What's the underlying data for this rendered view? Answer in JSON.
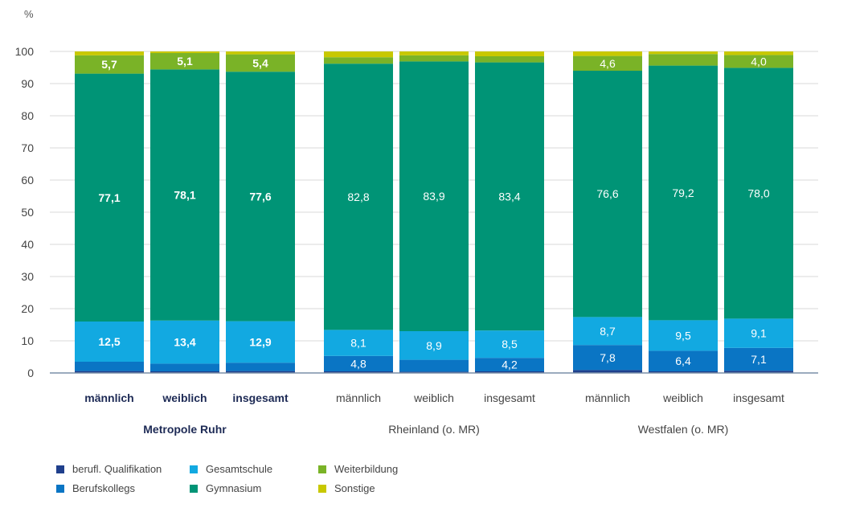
{
  "chart_data": {
    "type": "bar",
    "stacked": true,
    "y_unit_label": "%",
    "ylim": [
      0,
      100
    ],
    "y_ticks": [
      0,
      10,
      20,
      30,
      40,
      50,
      60,
      70,
      80,
      90,
      100
    ],
    "grid": true,
    "legend_position": "bottom-left",
    "groups": [
      {
        "label": "Metropole Ruhr",
        "bold": true,
        "bars": [
          {
            "label": "männlich",
            "values": {
              "berufl_qualifikation": 0.6,
              "berufskollegs": 2.9,
              "gesamtschule": 12.5,
              "gymnasium": 77.1,
              "weiterbildung": 5.7,
              "sonstige": 1.2
            }
          },
          {
            "label": "weiblich",
            "values": {
              "berufl_qualifikation": 0.5,
              "berufskollegs": 2.4,
              "gesamtschule": 13.4,
              "gymnasium": 78.1,
              "weiterbildung": 5.1,
              "sonstige": 0.5
            }
          },
          {
            "label": "insgesamt",
            "values": {
              "berufl_qualifikation": 0.6,
              "berufskollegs": 2.6,
              "gesamtschule": 12.9,
              "gymnasium": 77.6,
              "weiterbildung": 5.4,
              "sonstige": 0.9
            }
          }
        ]
      },
      {
        "label": "Rheinland (o. MR)",
        "bold": false,
        "bars": [
          {
            "label": "männlich",
            "values": {
              "berufl_qualifikation": 0.5,
              "berufskollegs": 4.8,
              "gesamtschule": 8.1,
              "gymnasium": 82.8,
              "weiterbildung": 2.0,
              "sonstige": 1.8
            }
          },
          {
            "label": "weiblich",
            "values": {
              "berufl_qualifikation": 0.4,
              "berufskollegs": 3.7,
              "gesamtschule": 8.9,
              "gymnasium": 83.9,
              "weiterbildung": 1.9,
              "sonstige": 1.2
            }
          },
          {
            "label": "insgesamt",
            "values": {
              "berufl_qualifikation": 0.5,
              "berufskollegs": 4.2,
              "gesamtschule": 8.5,
              "gymnasium": 83.4,
              "weiterbildung": 1.9,
              "sonstige": 1.5
            }
          }
        ]
      },
      {
        "label": "Westfalen (o. MR)",
        "bold": false,
        "bars": [
          {
            "label": "männlich",
            "values": {
              "berufl_qualifikation": 0.9,
              "berufskollegs": 7.8,
              "gesamtschule": 8.7,
              "gymnasium": 76.6,
              "weiterbildung": 4.6,
              "sonstige": 1.4
            }
          },
          {
            "label": "weiblich",
            "values": {
              "berufl_qualifikation": 0.5,
              "berufskollegs": 6.4,
              "gesamtschule": 9.5,
              "gymnasium": 79.2,
              "weiterbildung": 3.6,
              "sonstige": 0.8
            }
          },
          {
            "label": "insgesamt",
            "values": {
              "berufl_qualifikation": 0.7,
              "berufskollegs": 7.1,
              "gesamtschule": 9.1,
              "gymnasium": 78.0,
              "weiterbildung": 4.0,
              "sonstige": 1.1
            }
          }
        ]
      }
    ],
    "series": [
      {
        "key": "berufl_qualifikation",
        "name": "berufl. Qualifikation",
        "color": "#1f3f8c"
      },
      {
        "key": "berufskollegs",
        "name": "Berufskollegs",
        "color": "#0a75c4"
      },
      {
        "key": "gesamtschule",
        "name": "Gesamtschule",
        "color": "#12a9e1"
      },
      {
        "key": "gymnasium",
        "name": "Gymnasium",
        "color": "#009476"
      },
      {
        "key": "weiterbildung",
        "name": "Weiterbildung",
        "color": "#7ab327"
      },
      {
        "key": "sonstige",
        "name": "Sonstige",
        "color": "#c8c800"
      }
    ],
    "data_labels": [
      {
        "group": 0,
        "bar": 0,
        "series": "gesamtschule",
        "text": "12,5"
      },
      {
        "group": 0,
        "bar": 0,
        "series": "gymnasium",
        "text": "77,1"
      },
      {
        "group": 0,
        "bar": 0,
        "series": "weiterbildung",
        "text": "5,7"
      },
      {
        "group": 0,
        "bar": 1,
        "series": "gesamtschule",
        "text": "13,4"
      },
      {
        "group": 0,
        "bar": 1,
        "series": "gymnasium",
        "text": "78,1"
      },
      {
        "group": 0,
        "bar": 1,
        "series": "weiterbildung",
        "text": "5,1"
      },
      {
        "group": 0,
        "bar": 2,
        "series": "gesamtschule",
        "text": "12,9"
      },
      {
        "group": 0,
        "bar": 2,
        "series": "gymnasium",
        "text": "77,6"
      },
      {
        "group": 0,
        "bar": 2,
        "series": "weiterbildung",
        "text": "5,4"
      },
      {
        "group": 1,
        "bar": 0,
        "series": "berufskollegs",
        "text": "4,8"
      },
      {
        "group": 1,
        "bar": 0,
        "series": "gesamtschule",
        "text": "8,1"
      },
      {
        "group": 1,
        "bar": 0,
        "series": "gymnasium",
        "text": "82,8"
      },
      {
        "group": 1,
        "bar": 1,
        "series": "gesamtschule",
        "text": "8,9"
      },
      {
        "group": 1,
        "bar": 1,
        "series": "gymnasium",
        "text": "83,9"
      },
      {
        "group": 1,
        "bar": 2,
        "series": "berufskollegs",
        "text": "4,2"
      },
      {
        "group": 1,
        "bar": 2,
        "series": "gesamtschule",
        "text": "8,5"
      },
      {
        "group": 1,
        "bar": 2,
        "series": "gymnasium",
        "text": "83,4"
      },
      {
        "group": 2,
        "bar": 0,
        "series": "berufskollegs",
        "text": "7,8"
      },
      {
        "group": 2,
        "bar": 0,
        "series": "gesamtschule",
        "text": "8,7"
      },
      {
        "group": 2,
        "bar": 0,
        "series": "gymnasium",
        "text": "76,6"
      },
      {
        "group": 2,
        "bar": 0,
        "series": "weiterbildung",
        "text": "4,6"
      },
      {
        "group": 2,
        "bar": 1,
        "series": "berufskollegs",
        "text": "6,4"
      },
      {
        "group": 2,
        "bar": 1,
        "series": "gesamtschule",
        "text": "9,5"
      },
      {
        "group": 2,
        "bar": 1,
        "series": "gymnasium",
        "text": "79,2"
      },
      {
        "group": 2,
        "bar": 2,
        "series": "berufskollegs",
        "text": "7,1"
      },
      {
        "group": 2,
        "bar": 2,
        "series": "gesamtschule",
        "text": "9,1"
      },
      {
        "group": 2,
        "bar": 2,
        "series": "gymnasium",
        "text": "78,0"
      },
      {
        "group": 2,
        "bar": 2,
        "series": "weiterbildung",
        "text": "4,0"
      }
    ]
  },
  "legend": {
    "rows": [
      [
        "berufl_qualifikation",
        "gesamtschule",
        "weiterbildung"
      ],
      [
        "berufskollegs",
        "gymnasium",
        "sonstige"
      ]
    ]
  }
}
